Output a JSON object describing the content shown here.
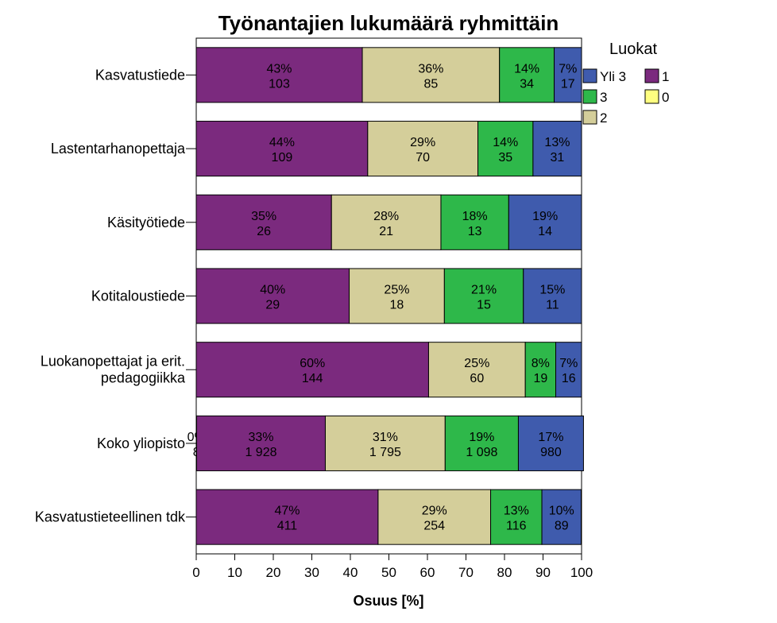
{
  "chart_data": {
    "type": "bar",
    "orientation": "horizontal",
    "stacked": true,
    "title": "Työnantajien lukumäärä ryhmittäin",
    "xlabel": "Osuus [%]",
    "ylabel": "",
    "xlim": [
      0,
      100
    ],
    "xticks": [
      "0",
      "10",
      "20",
      "30",
      "40",
      "50",
      "60",
      "70",
      "80",
      "90",
      "100"
    ],
    "grid": false,
    "legend": {
      "title": "Luokat",
      "placement": "right",
      "entries": [
        {
          "key": "yli3",
          "label": "Yli 3"
        },
        {
          "key": "c1",
          "label": "1"
        },
        {
          "key": "c3",
          "label": "3"
        },
        {
          "key": "c0",
          "label": "0"
        },
        {
          "key": "c2",
          "label": "2"
        }
      ]
    },
    "colors": {
      "c0": "#ffff80",
      "c1": "#7b2a7e",
      "c2": "#d4ce9a",
      "c3": "#2eb84a",
      "yli3": "#3f5bad"
    },
    "series_order": [
      "c0",
      "c1",
      "c2",
      "c3",
      "yli3"
    ],
    "categories": [
      {
        "lines": [
          "Kasvatustiede"
        ],
        "segments": [
          {
            "series": "c1",
            "value": 43.1,
            "pct": "43%",
            "count": "103"
          },
          {
            "series": "c2",
            "value": 35.6,
            "pct": "36%",
            "count": "85"
          },
          {
            "series": "c3",
            "value": 14.2,
            "pct": "14%",
            "count": "34"
          },
          {
            "series": "yli3",
            "value": 7.1,
            "pct": "7%",
            "count": "17"
          }
        ]
      },
      {
        "lines": [
          "Lastentarhanopettaja"
        ],
        "segments": [
          {
            "series": "c1",
            "value": 44.5,
            "pct": "44%",
            "count": "109"
          },
          {
            "series": "c2",
            "value": 28.6,
            "pct": "29%",
            "count": "70"
          },
          {
            "series": "c3",
            "value": 14.3,
            "pct": "14%",
            "count": "35"
          },
          {
            "series": "yli3",
            "value": 12.6,
            "pct": "13%",
            "count": "31"
          }
        ]
      },
      {
        "lines": [
          "Käsityötiede"
        ],
        "segments": [
          {
            "series": "c1",
            "value": 35.1,
            "pct": "35%",
            "count": "26"
          },
          {
            "series": "c2",
            "value": 28.4,
            "pct": "28%",
            "count": "21"
          },
          {
            "series": "c3",
            "value": 17.6,
            "pct": "18%",
            "count": "13"
          },
          {
            "series": "yli3",
            "value": 18.9,
            "pct": "19%",
            "count": "14"
          }
        ]
      },
      {
        "lines": [
          "Kotitaloustiede"
        ],
        "segments": [
          {
            "series": "c1",
            "value": 39.7,
            "pct": "40%",
            "count": "29"
          },
          {
            "series": "c2",
            "value": 24.7,
            "pct": "25%",
            "count": "18"
          },
          {
            "series": "c3",
            "value": 20.5,
            "pct": "21%",
            "count": "15"
          },
          {
            "series": "yli3",
            "value": 15.1,
            "pct": "15%",
            "count": "11"
          }
        ]
      },
      {
        "lines": [
          "Luokanopettajat ja erit.",
          "pedagogiikka"
        ],
        "segments": [
          {
            "series": "c1",
            "value": 60.3,
            "pct": "60%",
            "count": "144"
          },
          {
            "series": "c2",
            "value": 25.1,
            "pct": "25%",
            "count": "60"
          },
          {
            "series": "c3",
            "value": 7.9,
            "pct": "8%",
            "count": "19"
          },
          {
            "series": "yli3",
            "value": 6.7,
            "pct": "7%",
            "count": "16"
          }
        ]
      },
      {
        "lines": [
          "Koko yliopisto"
        ],
        "segments": [
          {
            "series": "c0",
            "value": 0.1,
            "pct": "0%",
            "count": "8"
          },
          {
            "series": "c1",
            "value": 33.4,
            "pct": "33%",
            "count": "1 928"
          },
          {
            "series": "c2",
            "value": 31.1,
            "pct": "31%",
            "count": "1 795"
          },
          {
            "series": "c3",
            "value": 19.0,
            "pct": "19%",
            "count": "1 098"
          },
          {
            "series": "yli3",
            "value": 16.9,
            "pct": "17%",
            "count": "980"
          }
        ]
      },
      {
        "lines": [
          "Kasvatustieteellinen tdk"
        ],
        "segments": [
          {
            "series": "c1",
            "value": 47.2,
            "pct": "47%",
            "count": "411"
          },
          {
            "series": "c2",
            "value": 29.2,
            "pct": "29%",
            "count": "254"
          },
          {
            "series": "c3",
            "value": 13.3,
            "pct": "13%",
            "count": "116"
          },
          {
            "series": "yli3",
            "value": 10.2,
            "pct": "10%",
            "count": "89"
          }
        ]
      }
    ]
  }
}
